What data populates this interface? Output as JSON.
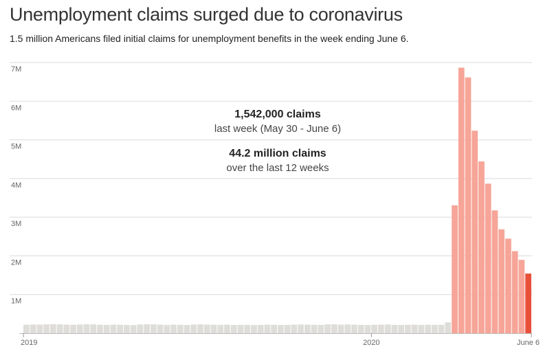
{
  "title": "Unemployment claims surged due to coronavirus",
  "subtitle": "1.5 million Americans filed initial claims for unemployment benefits in the week ending June 6.",
  "colors": {
    "baseline_bar": "#deddd9",
    "pandemic_bar": "#f6a598",
    "latest_bar": "#e8503a",
    "grid": "#d9d9d9"
  },
  "annotations": [
    {
      "bold": "1,542,000 claims",
      "light": "last week (May 30 - June 6)"
    },
    {
      "bold": "44.2 million claims",
      "light": "over the last 12 weeks"
    }
  ],
  "chart_data": {
    "type": "bar",
    "title": "Unemployment claims surged due to coronavirus",
    "ylim": [
      0,
      7000000
    ],
    "y_ticks": [
      {
        "value": 1000000,
        "label": "1M"
      },
      {
        "value": 2000000,
        "label": "2M"
      },
      {
        "value": 3000000,
        "label": "3M"
      },
      {
        "value": 4000000,
        "label": "4M"
      },
      {
        "value": 5000000,
        "label": "5M"
      },
      {
        "value": 6000000,
        "label": "6M"
      },
      {
        "value": 7000000,
        "label": "7M"
      }
    ],
    "x_labels": [
      {
        "index": 0,
        "label": "2019"
      },
      {
        "index": 52,
        "label": "2020"
      },
      {
        "index": 75,
        "label": "June 6"
      }
    ],
    "grid": true,
    "legend": "none",
    "values": [
      220000,
      225000,
      222000,
      230000,
      235000,
      228000,
      222000,
      218000,
      225000,
      232000,
      228000,
      220000,
      215000,
      222000,
      218000,
      215000,
      210000,
      225000,
      230000,
      228000,
      222000,
      215000,
      220000,
      218000,
      212000,
      225000,
      230000,
      222000,
      218000,
      215000,
      220000,
      212000,
      215000,
      218000,
      210000,
      215000,
      220000,
      218000,
      212000,
      215000,
      220000,
      225000,
      222000,
      218000,
      215000,
      228000,
      230000,
      222000,
      225000,
      220000,
      215000,
      212000,
      218000,
      222000,
      225000,
      215000,
      212000,
      218000,
      222000,
      215000,
      220000,
      217000,
      217000,
      282000,
      3307000,
      6867000,
      6615000,
      5237000,
      4442000,
      3867000,
      3176000,
      2687000,
      2446000,
      2123000,
      1897000,
      1542000
    ],
    "pandemic_start_index": 64,
    "latest_index": 75
  }
}
